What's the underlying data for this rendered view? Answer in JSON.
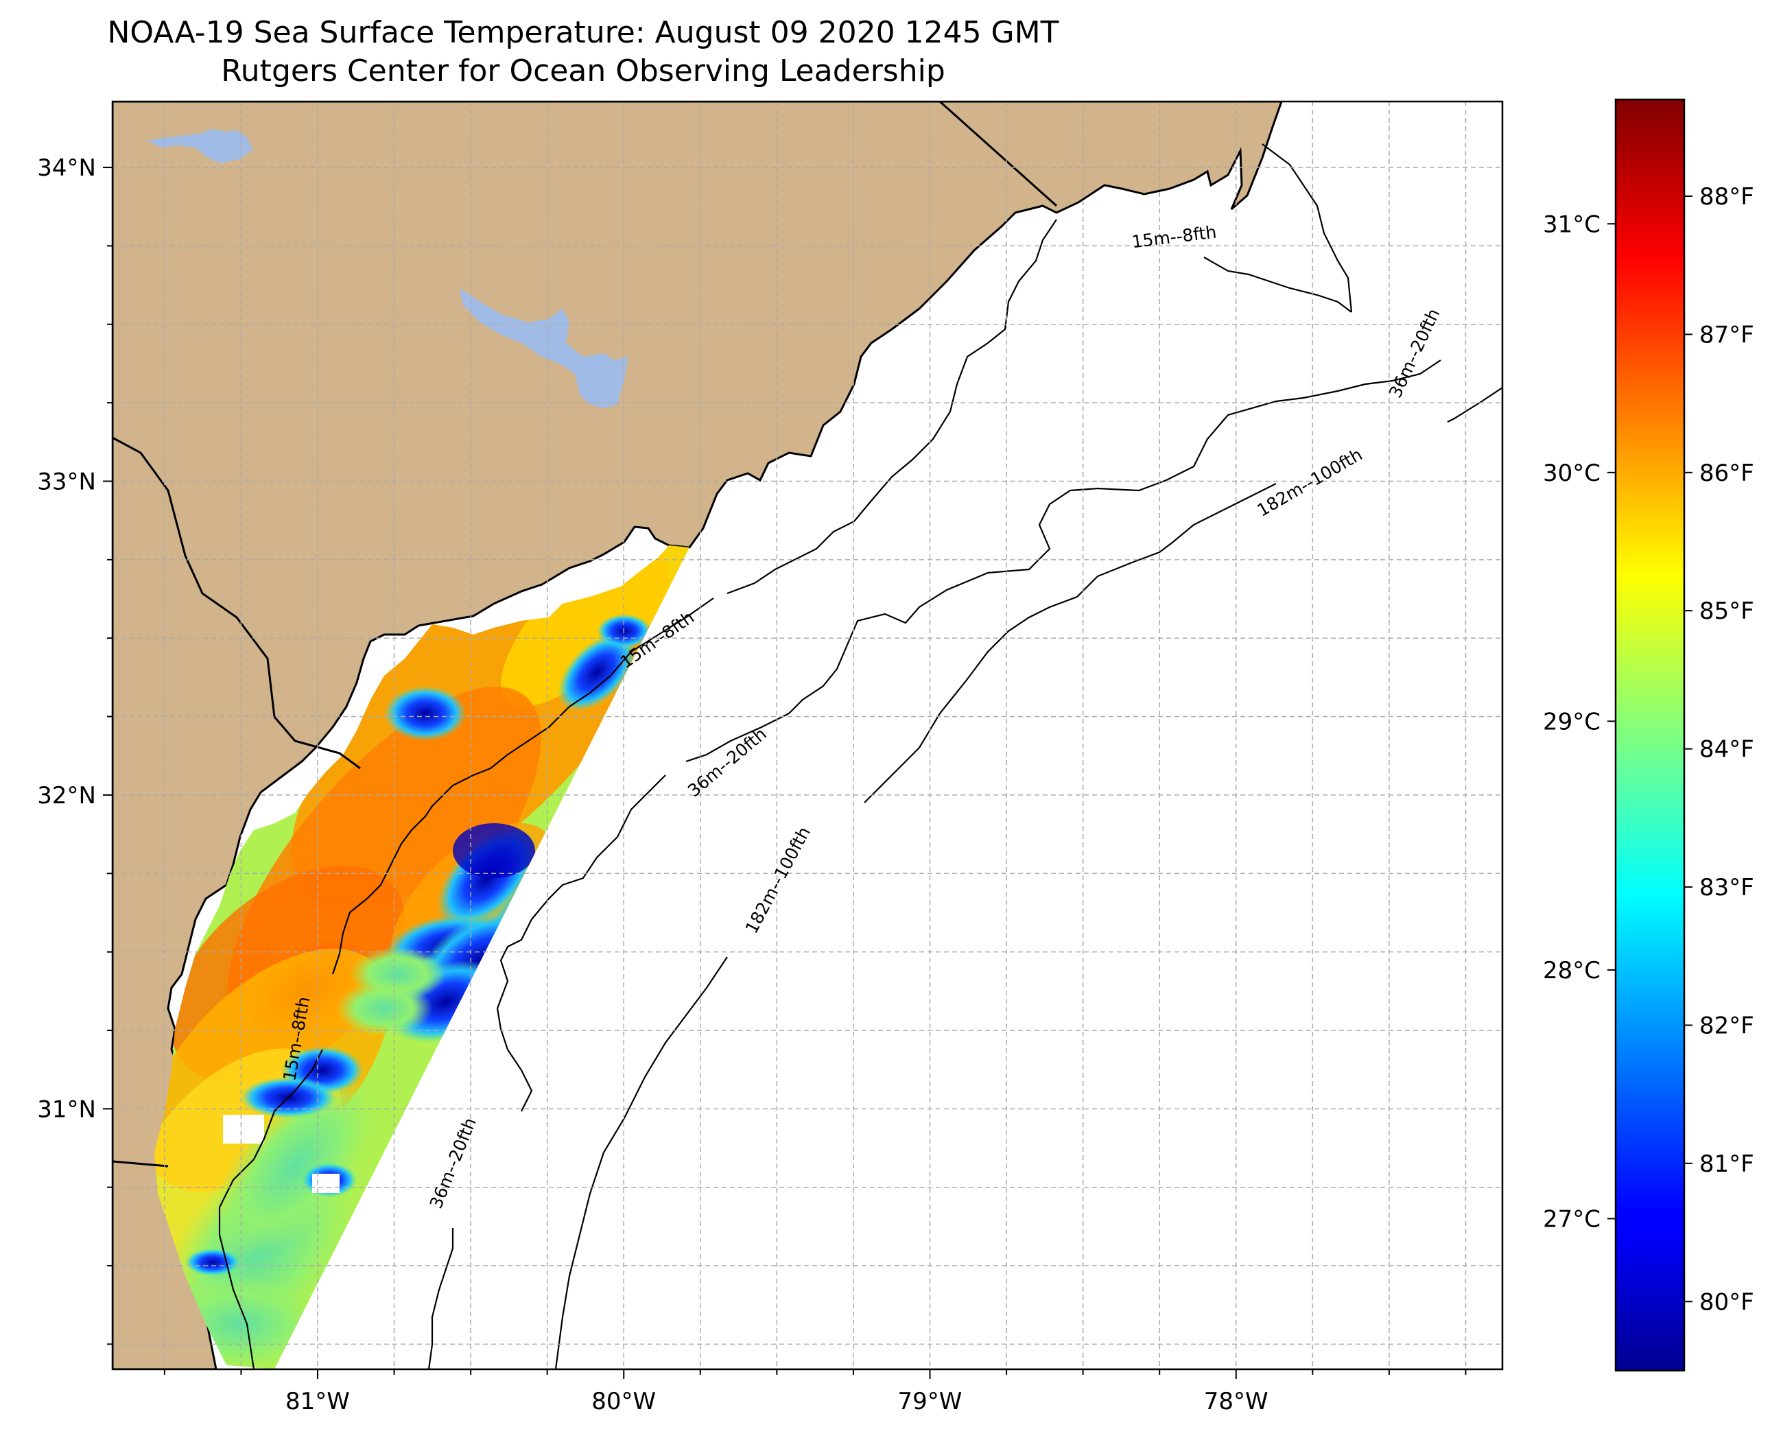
{
  "title": "NOAA-19 Sea Surface Temperature: August 09 2020 1245 GMT",
  "subtitle": "Rutgers Center for Ocean Observing Leadership",
  "map": {
    "projection": "lon/lat",
    "lon_range": [
      -81.67,
      -77.13
    ],
    "lat_range": [
      30.17,
      34.21
    ],
    "lat_ticks": [
      "34°N",
      "33°N",
      "32°N",
      "31°N"
    ],
    "lat_tick_values": [
      34,
      33,
      32,
      31
    ],
    "lon_ticks": [
      "81°W",
      "80°W",
      "79°W",
      "78°W"
    ],
    "lon_tick_values": [
      -81,
      -80,
      -79,
      -78
    ],
    "gridlines": "dashed gray every 0.25°",
    "land_color": "#d2b48c",
    "lake_color": "#a0bce6",
    "ocean_color": "#ffffff",
    "contour_labels": [
      {
        "text": "15m--8fth",
        "lon": -78.2,
        "lat": 33.76
      },
      {
        "text": "15m--8fth",
        "lon": -79.88,
        "lat": 32.48
      },
      {
        "text": "15m--8fth",
        "lon": -81.05,
        "lat": 31.22
      },
      {
        "text": "36m--20fth",
        "lon": -77.4,
        "lat": 33.4
      },
      {
        "text": "36m--20fth",
        "lon": -79.65,
        "lat": 32.09
      },
      {
        "text": "36m--20fth",
        "lon": -80.54,
        "lat": 30.82
      },
      {
        "text": "182m--100fth",
        "lon": -77.75,
        "lat": 32.98
      },
      {
        "text": "182m--100fth",
        "lon": -79.48,
        "lat": 31.72
      }
    ]
  },
  "colorbar": {
    "colormap": "jet",
    "vmin_f": 79.5,
    "vmax_f": 88.7,
    "fahrenheit_ticks": [
      "88°F",
      "87°F",
      "86°F",
      "85°F",
      "84°F",
      "83°F",
      "82°F",
      "81°F",
      "80°F"
    ],
    "fahrenheit_values": [
      88,
      87,
      86,
      85,
      84,
      83,
      82,
      81,
      80
    ],
    "celsius_ticks": [
      "31°C",
      "30°C",
      "29°C",
      "28°C",
      "27°C"
    ],
    "celsius_values": [
      31,
      30,
      29,
      28,
      27
    ]
  }
}
